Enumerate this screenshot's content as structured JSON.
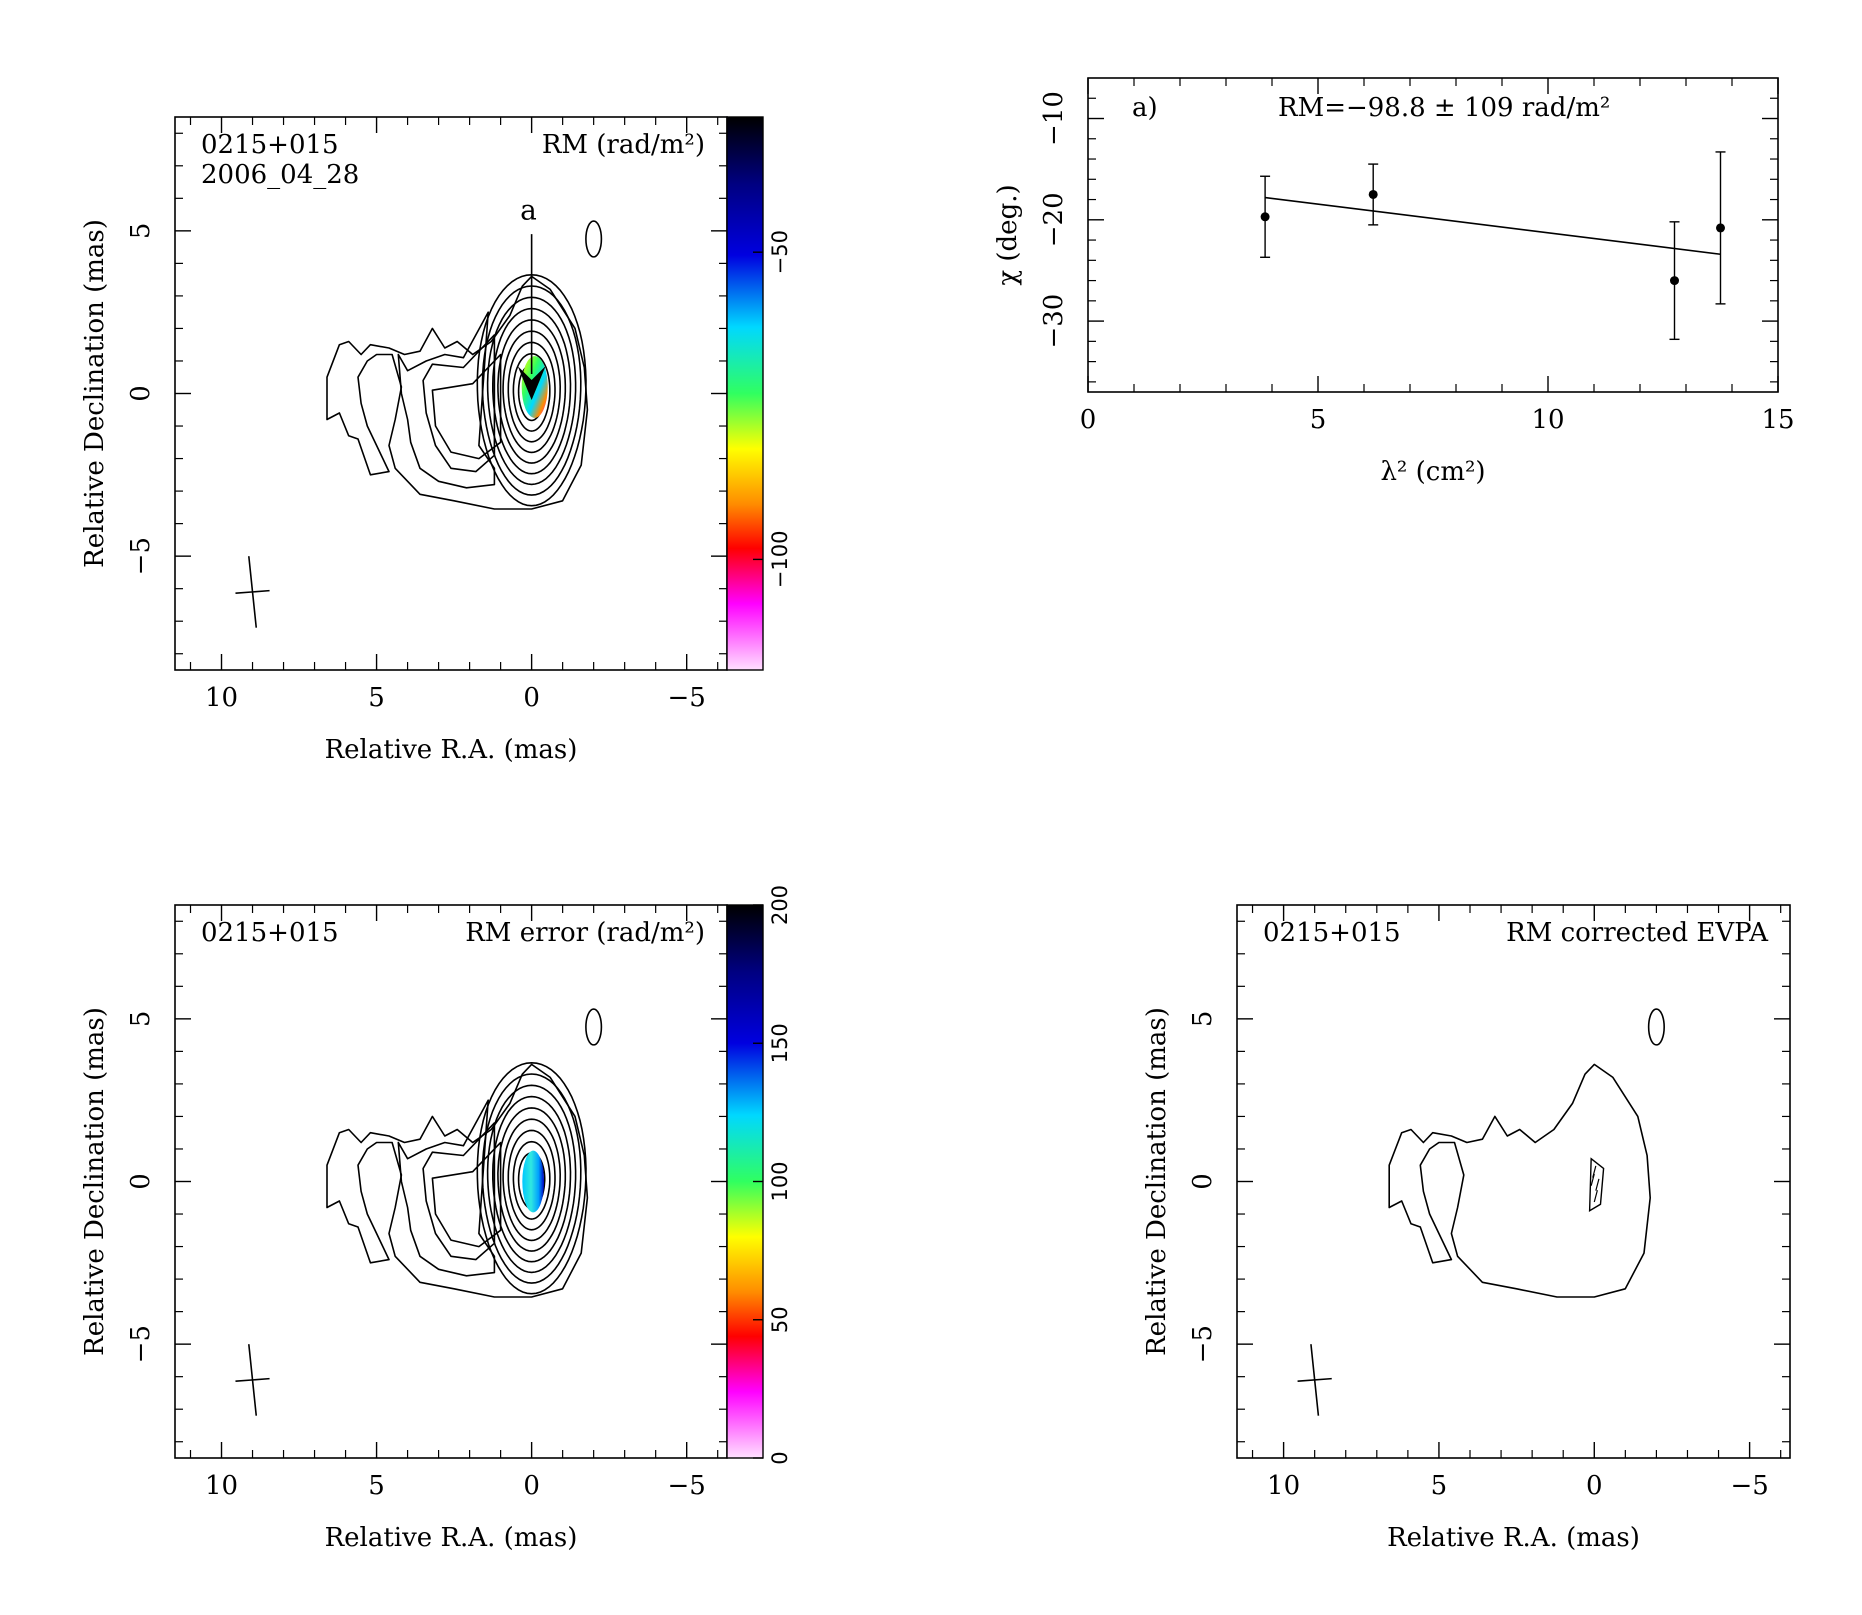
{
  "panels": {
    "rm_map": {
      "source": "0215+015",
      "epoch": "2006_04_28",
      "quantity": "RM (rad/m²)",
      "slice_label": "a",
      "xlabel": "Relative R.A. (mas)",
      "ylabel": "Relative Declination (mas)",
      "xticks": [
        "10",
        "5",
        "0",
        "−5"
      ],
      "yticks": [
        "5",
        "0",
        "−5"
      ],
      "colorbar_ticks": [
        "−50",
        "−100"
      ]
    },
    "rm_fit": {
      "panel_tag": "a)",
      "result": "RM=−98.8 ± 109 rad/m²",
      "xlabel": "λ² (cm²)",
      "ylabel": "χ (deg.)",
      "xticks": [
        "0",
        "5",
        "10",
        "15"
      ],
      "yticks": [
        "−10",
        "−20",
        "−30"
      ]
    },
    "rm_error_map": {
      "source": "0215+015",
      "quantity": "RM error (rad/m²)",
      "xlabel": "Relative R.A. (mas)",
      "ylabel": "Relative Declination (mas)",
      "xticks": [
        "10",
        "5",
        "0",
        "−5"
      ],
      "yticks": [
        "5",
        "0",
        "−5"
      ],
      "colorbar_ticks": [
        "0",
        "50",
        "100",
        "150",
        "200"
      ]
    },
    "evpa_map": {
      "source": "0215+015",
      "quantity": "RM corrected EVPA",
      "xlabel": "Relative R.A. (mas)",
      "ylabel": "Relative Declination (mas)",
      "xticks": [
        "10",
        "5",
        "0",
        "−5"
      ],
      "yticks": [
        "5",
        "0",
        "−5"
      ]
    }
  },
  "chart_data": [
    {
      "type": "heatmap",
      "panel": "rm_map",
      "xlim": [
        11.5,
        -6.3
      ],
      "ylim": [
        -8.5,
        8.5
      ],
      "colorbar_range": [
        -28,
        -118
      ],
      "colormap": [
        "#000000",
        "#0000c8",
        "#00d8ff",
        "#30ff30",
        "#ffff00",
        "#ff8c00",
        "#ff0000",
        "#ff00ff",
        "#ffd8ff"
      ]
    },
    {
      "type": "scatter",
      "panel": "rm_fit",
      "xlim": [
        0,
        15
      ],
      "ylim": [
        -37,
        -6
      ],
      "points": [
        {
          "x": 3.85,
          "y": -19.7,
          "err": 4.0
        },
        {
          "x": 6.2,
          "y": -17.5,
          "err": 3.0
        },
        {
          "x": 12.75,
          "y": -26.0,
          "err": 5.8
        },
        {
          "x": 13.75,
          "y": -20.8,
          "err": 7.5
        }
      ],
      "fit": {
        "x": [
          3.85,
          13.75
        ],
        "y": [
          -17.8,
          -23.4
        ]
      }
    },
    {
      "type": "heatmap",
      "panel": "rm_error_map",
      "xlim": [
        11.5,
        -6.3
      ],
      "ylim": [
        -8.5,
        8.5
      ],
      "colorbar_range": [
        0,
        200
      ],
      "colormap": [
        "#ffd8ff",
        "#ff00ff",
        "#ff0000",
        "#ff8c00",
        "#ffff00",
        "#30ff30",
        "#00d8ff",
        "#0000c8",
        "#000000"
      ]
    },
    {
      "type": "heatmap",
      "panel": "evpa_map",
      "xlim": [
        11.5,
        -6.3
      ],
      "ylim": [
        -8.5,
        8.5
      ]
    }
  ]
}
